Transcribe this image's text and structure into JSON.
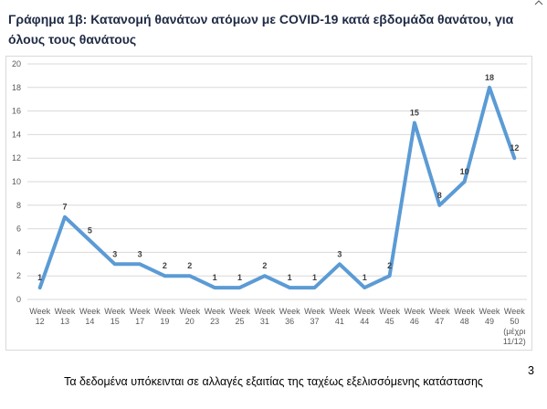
{
  "header": {
    "title": "Γράφημα 1β: Κατανομή θανάτων ατόμων με COVID-19 κατά εβδομάδα θανάτου, για όλους τους θανάτους"
  },
  "footer": {
    "note": "Τα δεδομένα υπόκεινται σε αλλαγές εξαιτίας της ταχέως εξελισσόμενης κατάστασης",
    "page_number": "3"
  },
  "chart_data": {
    "type": "line",
    "title": "",
    "xlabel": "",
    "ylabel": "",
    "ylim": [
      0,
      20
    ],
    "yticks": [
      0,
      2,
      4,
      6,
      8,
      10,
      12,
      14,
      16,
      18,
      20
    ],
    "grid": true,
    "legend": "none",
    "line_color": "#5b9bd5",
    "categories": [
      [
        "Week",
        "12"
      ],
      [
        "Week",
        "13"
      ],
      [
        "Week",
        "14"
      ],
      [
        "Week",
        "15"
      ],
      [
        "Week",
        "17"
      ],
      [
        "Week",
        "19"
      ],
      [
        "Week",
        "20"
      ],
      [
        "Week",
        "23"
      ],
      [
        "Week",
        "25"
      ],
      [
        "Week",
        "31"
      ],
      [
        "Week",
        "36"
      ],
      [
        "Week",
        "37"
      ],
      [
        "Week",
        "41"
      ],
      [
        "Week",
        "44"
      ],
      [
        "Week",
        "45"
      ],
      [
        "Week",
        "46"
      ],
      [
        "Week",
        "47"
      ],
      [
        "Week",
        "48"
      ],
      [
        "Week",
        "49"
      ],
      [
        "Week",
        "50",
        "(μέχρι",
        "11/12)"
      ]
    ],
    "values": [
      1,
      7,
      5,
      3,
      3,
      2,
      2,
      1,
      1,
      2,
      1,
      1,
      3,
      1,
      2,
      15,
      8,
      10,
      18,
      12
    ],
    "data_labels": true
  }
}
